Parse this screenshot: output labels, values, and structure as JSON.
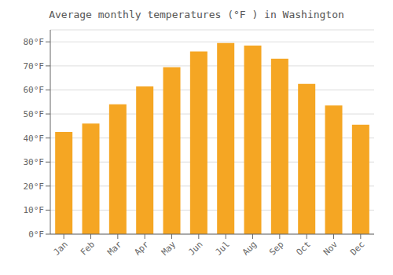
{
  "chart_data": {
    "type": "bar",
    "title": "Average monthly temperatures (°F ) in Washington",
    "categories": [
      "Jan",
      "Feb",
      "Mar",
      "Apr",
      "May",
      "Jun",
      "Jul",
      "Aug",
      "Sep",
      "Oct",
      "Nov",
      "Dec"
    ],
    "values": [
      42.5,
      46.0,
      54.0,
      61.5,
      69.5,
      76.0,
      79.5,
      78.5,
      73.0,
      62.5,
      53.5,
      45.5
    ],
    "color": "#F5A623",
    "ylim": [
      0,
      85
    ],
    "yticks": [
      {
        "value": 0,
        "label": "0°F"
      },
      {
        "value": 10,
        "label": "10°F"
      },
      {
        "value": 20,
        "label": "20°F"
      },
      {
        "value": 30,
        "label": "30°F"
      },
      {
        "value": 40,
        "label": "40°F"
      },
      {
        "value": 50,
        "label": "50°F"
      },
      {
        "value": 60,
        "label": "60°F"
      },
      {
        "value": 70,
        "label": "70°F"
      },
      {
        "value": 80,
        "label": "80°F"
      }
    ],
    "grid": true
  }
}
